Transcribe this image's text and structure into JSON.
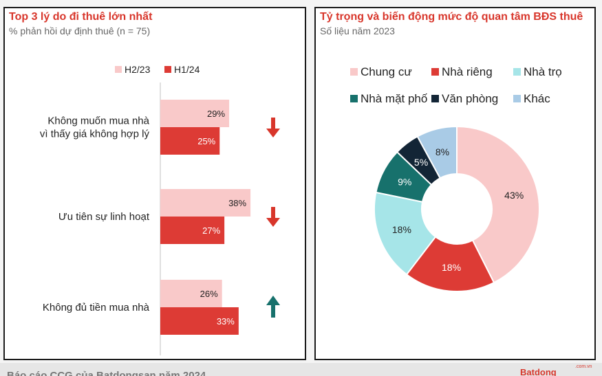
{
  "left_panel": {
    "title": "Top 3 lý do đi thuê lớn nhất",
    "subtitle": "% phản hồi dự định thuê (n = 75)"
  },
  "right_panel": {
    "title": "Tỷ trọng và biến động mức độ quan tâm BĐS thuê",
    "subtitle": "Số liệu năm 2023"
  },
  "footer": {
    "caption": "Báo cáo CCG của Batdongsan năm 2024",
    "brand": "Batdong",
    "brand_sup": ".com.vn"
  },
  "colors": {
    "accent_red": "#d8362b",
    "h2_23": "#f9c9c9",
    "h1_24": "#dd3b35",
    "arrow_down": "#d8362b",
    "arrow_up": "#17716c"
  },
  "chart_data": [
    {
      "type": "bar",
      "orientation": "horizontal",
      "categories": [
        [
          "Không muốn mua nhà",
          "vì thấy giá không hợp lý"
        ],
        [
          "Ưu tiên sự linh hoạt"
        ],
        [
          "Không đủ tiền mua nhà"
        ]
      ],
      "series": [
        {
          "name": "H2/23",
          "color": "#f9c9c9",
          "values": [
            29,
            38,
            26
          ],
          "labels": [
            "29%",
            "38%",
            "26%"
          ]
        },
        {
          "name": "H1/24",
          "color": "#dd3b35",
          "values": [
            25,
            27,
            33
          ],
          "labels": [
            "25%",
            "27%",
            "33%"
          ]
        }
      ],
      "trend_icons": [
        "arrow-down",
        "arrow-down",
        "arrow-up"
      ],
      "xlim": [
        0,
        40
      ],
      "legend_position": "top"
    },
    {
      "type": "pie",
      "donut": true,
      "categories": [
        "Chung cư",
        "Nhà riêng",
        "Nhà trọ",
        "Nhà mặt phố",
        "Văn phòng",
        "Khác"
      ],
      "values": [
        43,
        18,
        18,
        9,
        5,
        8
      ],
      "labels": [
        "43%",
        "18%",
        "18%",
        "9%",
        "5%",
        "8%"
      ],
      "colors": [
        "#f9c9c9",
        "#dd3b35",
        "#a6e5e8",
        "#17716c",
        "#132536",
        "#a9cbe6"
      ],
      "label_colors": [
        "#222222",
        "#ffffff",
        "#222222",
        "#ffffff",
        "#ffffff",
        "#222222"
      ],
      "legend_position": "top"
    }
  ]
}
